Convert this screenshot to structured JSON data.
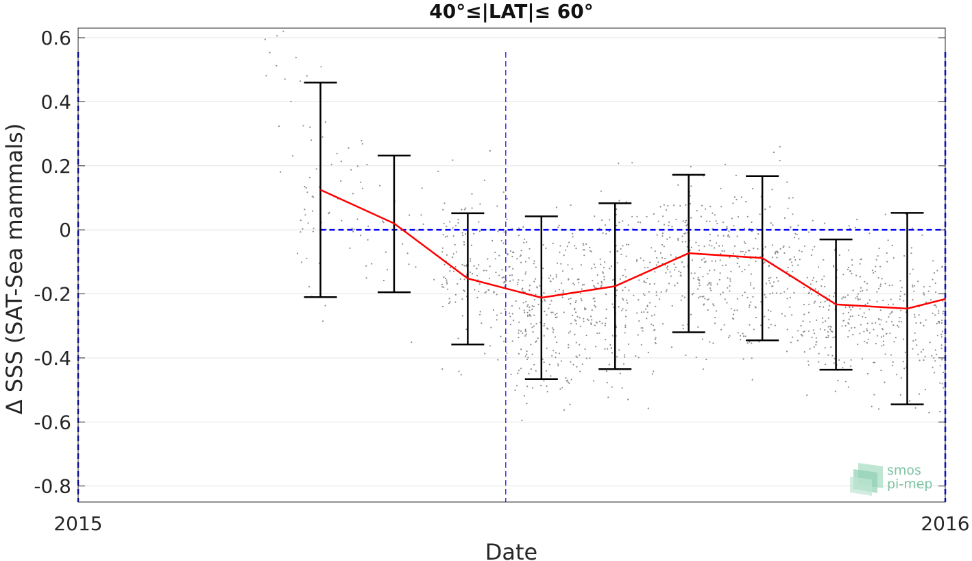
{
  "chart_data": {
    "type": "scatter",
    "title": "40°≤|LAT|≤ 60°",
    "xlabel": "Date",
    "ylabel": "Δ SSS (SAT-Sea mammals)",
    "xlim": [
      "2015-01-01",
      "2016-01-01"
    ],
    "ylim": [
      -0.85,
      0.63
    ],
    "x_ticks": [
      "2015",
      "2016"
    ],
    "y_ticks": [
      0.6,
      0.4,
      0.2,
      0,
      -0.2,
      -0.4,
      -0.6,
      -0.8
    ],
    "grid": true,
    "series": [
      {
        "type": "line",
        "color": "#ff0000",
        "points": [
          {
            "x": "2015-04-13",
            "y": 0.125
          },
          {
            "x": "2015-05-14",
            "y": 0.02
          },
          {
            "x": "2015-06-14",
            "y": -0.152
          },
          {
            "x": "2015-07-15",
            "y": -0.212
          },
          {
            "x": "2015-08-15",
            "y": -0.176
          },
          {
            "x": "2015-09-15",
            "y": -0.073
          },
          {
            "x": "2015-10-16",
            "y": -0.088
          },
          {
            "x": "2015-11-16",
            "y": -0.233
          },
          {
            "x": "2015-12-16",
            "y": -0.246
          },
          {
            "x": "2016-01-01",
            "y": -0.216
          }
        ]
      },
      {
        "type": "errorbar",
        "color": "#000000",
        "bars": [
          {
            "x": "2015-04-13",
            "low": -0.21,
            "high": 0.46
          },
          {
            "x": "2015-05-14",
            "low": -0.195,
            "high": 0.232
          },
          {
            "x": "2015-06-14",
            "low": -0.358,
            "high": 0.052
          },
          {
            "x": "2015-07-15",
            "low": -0.466,
            "high": 0.042
          },
          {
            "x": "2015-08-15",
            "low": -0.435,
            "high": 0.083
          },
          {
            "x": "2015-09-15",
            "low": -0.32,
            "high": 0.172
          },
          {
            "x": "2015-10-16",
            "low": -0.345,
            "high": 0.168
          },
          {
            "x": "2015-11-16",
            "low": -0.437,
            "high": -0.03
          },
          {
            "x": "2015-12-16",
            "low": -0.545,
            "high": 0.053
          }
        ]
      },
      {
        "type": "scatter",
        "color": "#8c8c8c",
        "clusters": [
          {
            "x_range": [
              "2015-03-20",
              "2015-04-08"
            ],
            "center": 0.45,
            "spread": 0.18,
            "count": 14
          },
          {
            "x_range": [
              "2015-04-03",
              "2015-05-01"
            ],
            "center": 0.05,
            "spread": 0.28,
            "count": 55
          },
          {
            "x_range": [
              "2015-05-01",
              "2015-06-03"
            ],
            "center": -0.05,
            "spread": 0.25,
            "count": 25
          },
          {
            "x_range": [
              "2015-06-03",
              "2015-07-01"
            ],
            "center": -0.12,
            "spread": 0.22,
            "count": 150
          },
          {
            "x_range": [
              "2015-07-01",
              "2015-08-01"
            ],
            "center": -0.25,
            "spread": 0.22,
            "count": 260
          },
          {
            "x_range": [
              "2015-08-01",
              "2015-09-01"
            ],
            "center": -0.2,
            "spread": 0.24,
            "count": 220
          },
          {
            "x_range": [
              "2015-09-01",
              "2015-10-01"
            ],
            "center": -0.1,
            "spread": 0.22,
            "count": 200
          },
          {
            "x_range": [
              "2015-10-01",
              "2015-11-01"
            ],
            "center": -0.12,
            "spread": 0.22,
            "count": 200
          },
          {
            "x_range": [
              "2015-11-01",
              "2015-12-01"
            ],
            "center": -0.24,
            "spread": 0.2,
            "count": 200
          },
          {
            "x_range": [
              "2015-12-01",
              "2016-01-01"
            ],
            "center": -0.28,
            "spread": 0.22,
            "count": 190
          }
        ]
      }
    ],
    "reference_lines": [
      {
        "orientation": "horizontal",
        "y": 0,
        "x_from": "2015-04-13",
        "x_to": "2016-01-01",
        "color": "#0000ff",
        "style": "dashed"
      },
      {
        "orientation": "vertical",
        "x": "2015-01-01",
        "color": "#0000ff",
        "style": "dashed"
      },
      {
        "orientation": "vertical",
        "x": "2015-06-30",
        "color": "#0000ff",
        "style": "dashed"
      },
      {
        "orientation": "vertical",
        "x": "2016-01-01",
        "color": "#0000ff",
        "style": "dashed"
      }
    ],
    "watermark": {
      "line1": "smos",
      "line2": "pi-mep",
      "color": "#7dc3a3"
    }
  }
}
